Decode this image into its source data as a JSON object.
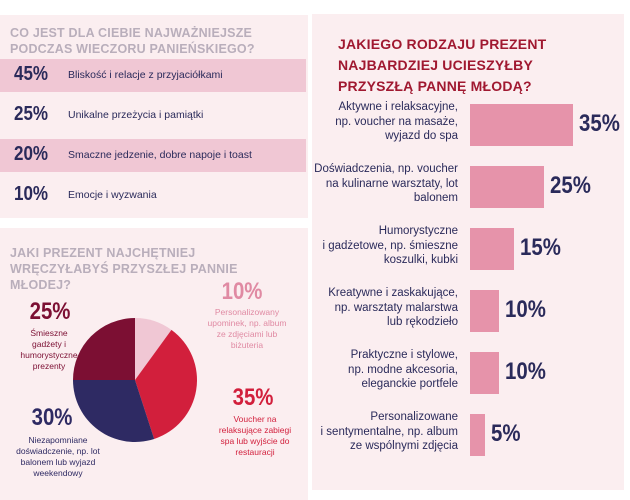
{
  "priorities": {
    "title": "CO JEST DLA CIEBIE NAJWAŻNIEJSZE PODCZAS WIECZORU PANIEŃSKIEGO?",
    "rows": [
      {
        "pct": "45%",
        "label": "Bliskość i relacje z przyjaciółkami"
      },
      {
        "pct": "25%",
        "label": "Unikalne przeżycia i pamiątki"
      },
      {
        "pct": "20%",
        "label": "Smaczne jedzenie, dobre napoje i toast"
      },
      {
        "pct": "10%",
        "label": "Emocje i wyzwania"
      }
    ]
  },
  "gifts": {
    "title": "JAKI PREZENT NAJCHĘTNIEJ WRĘCZYŁABYŚ PRZYSZŁEJ PANNIE MŁODEJ?",
    "slices": [
      {
        "pct": "10%",
        "desc": "Personalizowany upominek, np. album ze zdjęciami lub biżuteria",
        "color": "#f0c7d4",
        "pct_color": "#e08aa3",
        "desc_color": "#e08aa3"
      },
      {
        "pct": "35%",
        "desc": "Voucher na relaksujące zabiegi spa lub wyjście do restauracji",
        "color": "#d21f3c",
        "pct_color": "#d21f3c",
        "desc_color": "#d21f3c"
      },
      {
        "pct": "30%",
        "desc": "Niezapomniane doświadczenie, np. lot balonem lub wyjazd weekendowy",
        "color": "#2e2a63",
        "pct_color": "#2e2a63",
        "desc_color": "#2e2a63"
      },
      {
        "pct": "25%",
        "desc": "Śmieszne gadżety i humorystyczne prezenty",
        "color": "#7c0f33",
        "pct_color": "#7c0f33",
        "desc_color": "#7c0f33"
      }
    ]
  },
  "bride": {
    "title": "JAKIEGO RODZAJU PREZENT NAJBARDZIEJ UCIESZYŁBY PRZYSZŁĄ PANNĘ MŁODĄ?",
    "bars": [
      {
        "lines": [
          "Aktywne i relaksacyjne,",
          "np. voucher na masaże,",
          "wyjazd do spa"
        ],
        "pct": "35%"
      },
      {
        "lines": [
          "Doświadczenia, np. voucher",
          "na kulinarne warsztaty, lot",
          "balonem"
        ],
        "pct": "25%"
      },
      {
        "lines": [
          "Humorystyczne",
          "i gadżetowe, np. śmieszne",
          "koszulki, kubki"
        ],
        "pct": "15%"
      },
      {
        "lines": [
          "Kreatywne i zaskakujące,",
          "np. warsztaty malarstwa",
          "lub rękodzieło"
        ],
        "pct": "10%"
      },
      {
        "lines": [
          "Praktyczne i stylowe,",
          "np. modne akcesoria,",
          "eleganckie portfele"
        ],
        "pct": "10%"
      },
      {
        "lines": [
          "Personalizowane",
          "i sentymentalne, np. album",
          "ze wspólnymi zdjęcia"
        ],
        "pct": "5%"
      }
    ]
  },
  "chart_data": [
    {
      "type": "table",
      "title": "CO JEST DLA CIEBIE NAJWAŻNIEJSZE PODCZAS WIECZORU PANIEŃSKIEGO?",
      "categories": [
        "Bliskość i relacje z przyjaciółkami",
        "Unikalne przeżycia i pamiątki",
        "Smaczne jedzenie, dobre napoje i toast",
        "Emocje i wyzwania"
      ],
      "values": [
        45,
        25,
        20,
        10
      ]
    },
    {
      "type": "pie",
      "title": "JAKI PREZENT NAJCHĘTNIEJ WRĘCZYŁABYŚ PRZYSZŁEJ PANNIE MŁODEJ?",
      "categories": [
        "Personalizowany upominek, np. album ze zdjęciami lub biżuteria",
        "Voucher na relaksujące zabiegi spa lub wyjście do restauracji",
        "Niezapomniane doświadczenie, np. lot balonem lub wyjazd weekendowy",
        "Śmieszne gadżety i humorystyczne prezenty"
      ],
      "values": [
        10,
        35,
        30,
        25
      ]
    },
    {
      "type": "bar",
      "title": "JAKIEGO RODZAJU PREZENT NAJBARDZIEJ UCIESZYŁBY PRZYSZŁĄ PANNĘ MŁODĄ?",
      "categories": [
        "Aktywne i relaksacyjne, np. voucher na masaże, wyjazd do spa",
        "Doświadczenia, np. voucher na kulinarne warsztaty, lot balonem",
        "Humorystyczne i gadżetowe, np. śmieszne koszulki, kubki",
        "Kreatywne i zaskakujące, np. warsztaty malarstwa lub rękodzieło",
        "Praktyczne i stylowe, np. modne akcesoria, eleganckie portfele",
        "Personalizowane i sentymentalne, np. album ze wspólnymi zdjęcia"
      ],
      "values": [
        35,
        25,
        15,
        10,
        10,
        5
      ],
      "xlim": [
        0,
        35
      ]
    }
  ]
}
